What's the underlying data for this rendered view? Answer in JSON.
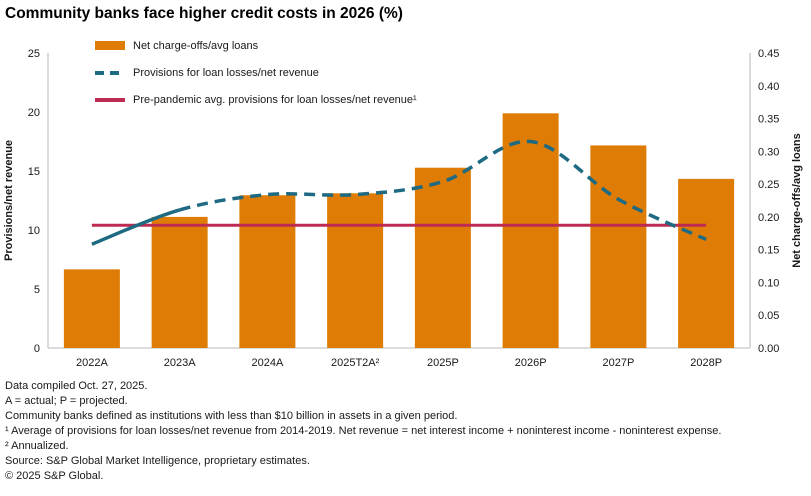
{
  "title": "Community banks face higher credit costs in 2026 (%)",
  "legend": {
    "items": [
      {
        "label": "Net charge-offs/avg loans",
        "swatch": "bar"
      },
      {
        "label": "Provisions for loan losses/net revenue",
        "swatch": "dashed-line"
      },
      {
        "label": "Pre-pandemic avg. provisions for loan losses/net revenue¹",
        "swatch": "solid-line"
      }
    ]
  },
  "chart_data": {
    "type": "bar+line",
    "title": "Community banks face higher credit costs in 2026 (%)",
    "categories": [
      "2022A",
      "2023A",
      "2024A",
      "2025T2A²",
      "2025P",
      "2026P",
      "2027P",
      "2028P"
    ],
    "series": [
      {
        "name": "Net charge-offs/avg loans",
        "type": "bar",
        "axis": "right",
        "color": "#de7c05",
        "values": [
          0.12,
          0.2,
          0.233,
          0.236,
          0.275,
          0.358,
          0.309,
          0.258
        ]
      },
      {
        "name": "Provisions for loan losses/net revenue",
        "type": "line",
        "style": "solid through 2023A, dashed afterward",
        "solid_through_index": 1,
        "axis": "left",
        "color": "#1e6a82",
        "values": [
          8.8,
          11.7,
          13.0,
          13.0,
          14.1,
          17.5,
          12.6,
          9.2
        ]
      },
      {
        "name": "Pre-pandemic avg. provisions for loan losses/net revenue¹",
        "type": "reference-line",
        "axis": "left",
        "color": "#be2b52",
        "value": 10.4
      }
    ],
    "left_axis": {
      "label": "Provisions/net revenue",
      "min": 0,
      "max": 25,
      "ticks": [
        0,
        5,
        10,
        15,
        20,
        25
      ]
    },
    "right_axis": {
      "label": "Net charge-offs/avg loans",
      "min": 0,
      "max": 0.45,
      "ticks": [
        "0.00",
        "0.05",
        "0.10",
        "0.15",
        "0.20",
        "0.25",
        "0.30",
        "0.35",
        "0.40",
        "0.45"
      ]
    },
    "grid": false,
    "legend_position": "top-left-inside",
    "axis_line_color": "#c6c6c6",
    "text_color": "#191919"
  },
  "footnotes": [
    "Data compiled Oct. 27, 2025.",
    "A = actual; P = projected.",
    "Community banks defined as institutions with less than $10 billion in assets in a given period.",
    "¹ Average of provisions for loan losses/net revenue from 2014-2019. Net revenue = net interest income + noninterest income - noninterest expense.",
    "² Annualized.",
    "Source: S&P Global Market Intelligence, proprietary estimates.",
    "© 2025 S&P Global."
  ]
}
